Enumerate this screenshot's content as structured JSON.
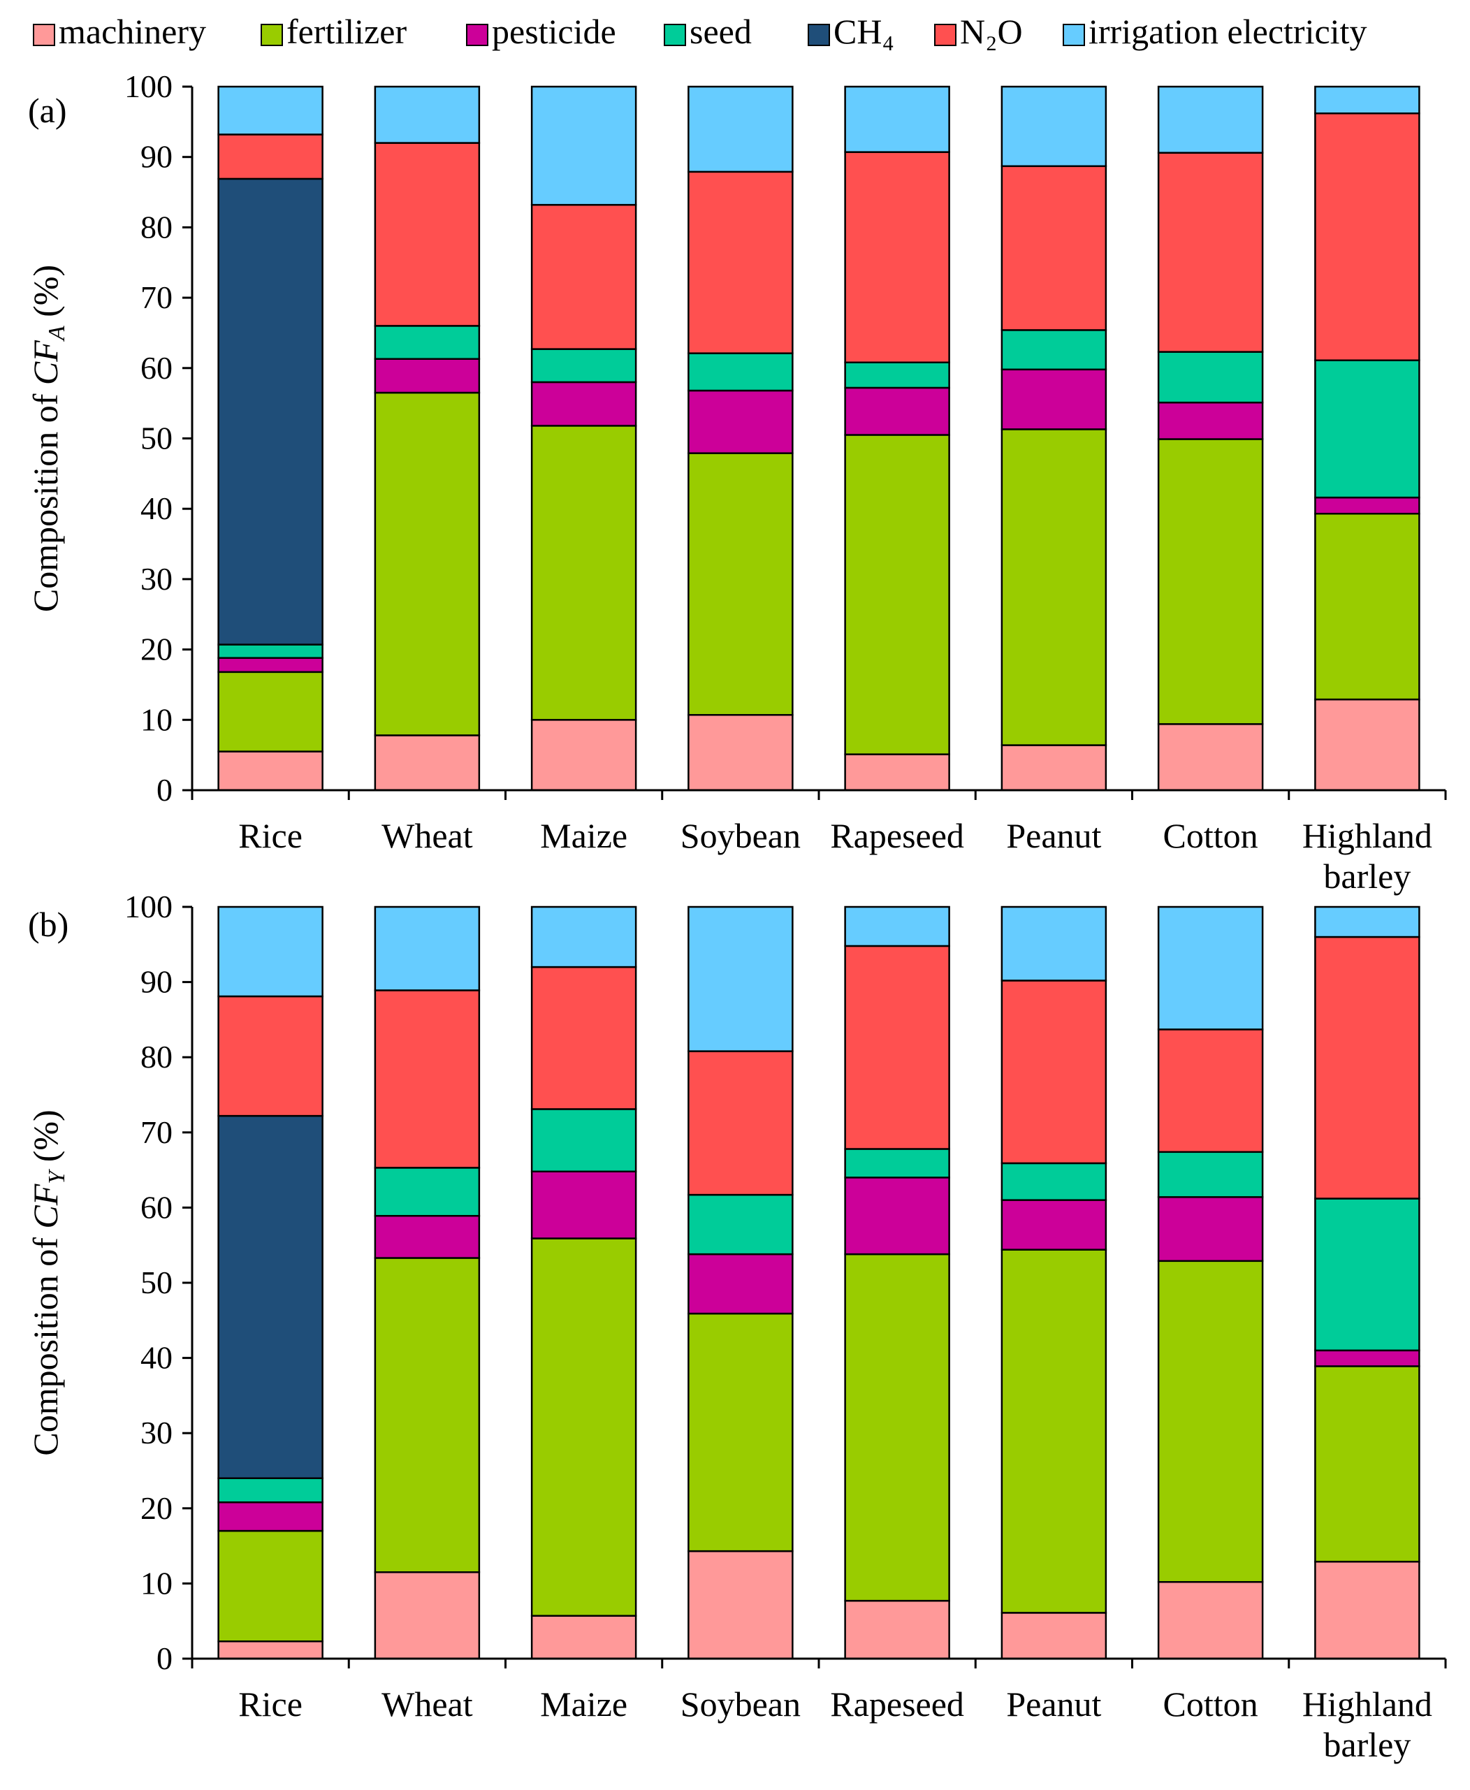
{
  "legend": [
    {
      "name": "machinery",
      "label": "machinery",
      "color": "#FF9999"
    },
    {
      "name": "fertilizer",
      "label": "fertilizer",
      "color": "#99CC00"
    },
    {
      "name": "pesticide",
      "label": "pesticide",
      "color": "#CC0099"
    },
    {
      "name": "seed",
      "label": "seed",
      "color": "#00CC99"
    },
    {
      "name": "ch4",
      "label": "CH₄",
      "color": "#1F4E79"
    },
    {
      "name": "n2o",
      "label": "N₂O",
      "color": "#FF5050"
    },
    {
      "name": "irrigation-electricity",
      "label": "irrigation electricity",
      "color": "#66CCFF"
    }
  ],
  "chart_data": [
    {
      "type": "bar",
      "stacked": true,
      "panel_label": "(a)",
      "ylabel_prefix": "Composition of ",
      "ylabel_var": "CF",
      "ylabel_sub": "A",
      "ylabel_suffix": " (%)",
      "ylim": [
        0,
        100
      ],
      "yticks": [
        "0",
        "10",
        "20",
        "30",
        "40",
        "50",
        "60",
        "70",
        "80",
        "90",
        "100"
      ],
      "categories": [
        "Rice",
        "Wheat",
        "Maize",
        "Soybean",
        "Rapeseed",
        "Peanut",
        "Cotton",
        "Highland\nbarley"
      ],
      "series": [
        {
          "name": "machinery",
          "values": [
            5.5,
            7.8,
            10.0,
            10.7,
            5.1,
            6.4,
            9.4,
            12.9
          ]
        },
        {
          "name": "fertilizer",
          "values": [
            11.3,
            48.7,
            41.8,
            37.2,
            45.4,
            44.9,
            40.5,
            26.4
          ]
        },
        {
          "name": "pesticide",
          "values": [
            2.0,
            4.8,
            6.2,
            8.9,
            6.7,
            8.5,
            5.2,
            2.3
          ]
        },
        {
          "name": "seed",
          "values": [
            1.9,
            4.7,
            4.7,
            5.3,
            3.6,
            5.6,
            7.2,
            19.5
          ]
        },
        {
          "name": "CH₄",
          "values": [
            66.2,
            0,
            0,
            0,
            0,
            0,
            0,
            0
          ]
        },
        {
          "name": "N₂O",
          "values": [
            6.3,
            26.0,
            20.5,
            25.8,
            29.9,
            23.3,
            28.3,
            35.1
          ]
        },
        {
          "name": "irrigation electricity",
          "values": [
            6.8,
            8.0,
            16.8,
            12.1,
            9.3,
            11.3,
            9.4,
            3.8
          ]
        }
      ]
    },
    {
      "type": "bar",
      "stacked": true,
      "panel_label": "(b)",
      "ylabel_prefix": "Composition of ",
      "ylabel_var": "CF",
      "ylabel_sub": "Y",
      "ylabel_suffix": " (%)",
      "ylim": [
        0,
        100
      ],
      "yticks": [
        "0",
        "10",
        "20",
        "30",
        "40",
        "50",
        "60",
        "70",
        "80",
        "90",
        "100"
      ],
      "categories": [
        "Rice",
        "Wheat",
        "Maize",
        "Soybean",
        "Rapeseed",
        "Peanut",
        "Cotton",
        "Highland\nbarley"
      ],
      "series": [
        {
          "name": "machinery",
          "values": [
            2.3,
            11.5,
            5.7,
            14.3,
            7.7,
            6.1,
            10.2,
            12.9
          ]
        },
        {
          "name": "fertilizer",
          "values": [
            14.7,
            41.8,
            50.2,
            31.6,
            46.1,
            48.3,
            42.7,
            26.0
          ]
        },
        {
          "name": "pesticide",
          "values": [
            3.8,
            5.6,
            8.9,
            7.9,
            10.2,
            6.6,
            8.5,
            2.1
          ]
        },
        {
          "name": "seed",
          "values": [
            3.2,
            6.4,
            8.3,
            7.9,
            3.8,
            4.9,
            6.0,
            20.2
          ]
        },
        {
          "name": "CH₄",
          "values": [
            48.2,
            0,
            0,
            0,
            0,
            0,
            0,
            0
          ]
        },
        {
          "name": "N₂O",
          "values": [
            15.9,
            23.6,
            18.9,
            19.1,
            27.0,
            24.3,
            16.3,
            34.8
          ]
        },
        {
          "name": "irrigation electricity",
          "values": [
            11.9,
            11.1,
            8.0,
            19.2,
            5.2,
            9.8,
            16.3,
            4.0
          ]
        }
      ]
    }
  ]
}
